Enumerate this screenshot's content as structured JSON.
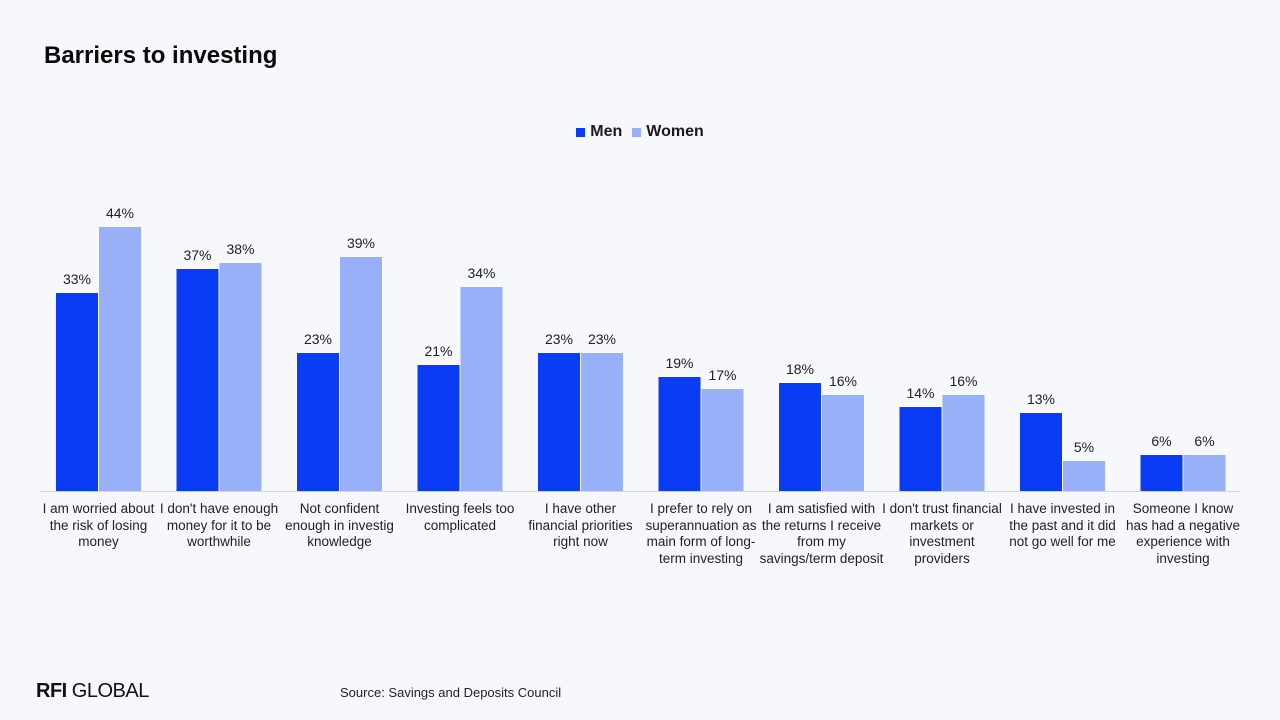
{
  "title": "Barriers to investing",
  "source": "Source: Savings and Deposits Council",
  "logo": {
    "bold": "RFI",
    "rest": " GLOBAL"
  },
  "colors": {
    "men": "#0a3cf5",
    "women": "#98b0f7",
    "background": "#f6f8fc"
  },
  "chart_data": {
    "type": "bar",
    "title": "Barriers to investing",
    "xlabel": "",
    "ylabel": "",
    "ylim": [
      0,
      50
    ],
    "grid": false,
    "legend_position": "top-center",
    "value_suffix": "%",
    "categories": [
      "I am worried about the risk of losing money",
      "I don't have enough money for it to be worthwhile",
      "Not confident enough in investig knowledge",
      "Investing feels too complicated",
      "I have other financial priorities right now",
      "I prefer to rely on superannuation as main form of long-term investing",
      "I am satisfied with the returns I receive from my savings/term deposit",
      "I don't trust financial markets or investment providers",
      "I have invested in the past and it did not go well for me",
      "Someone I know has had a negative experience with investing"
    ],
    "series": [
      {
        "name": "Men",
        "color": "#0a3cf5",
        "values": [
          33,
          37,
          23,
          21,
          23,
          19,
          18,
          14,
          13,
          6
        ]
      },
      {
        "name": "Women",
        "color": "#98b0f7",
        "values": [
          44,
          38,
          39,
          34,
          23,
          17,
          16,
          16,
          5,
          6
        ]
      }
    ]
  }
}
